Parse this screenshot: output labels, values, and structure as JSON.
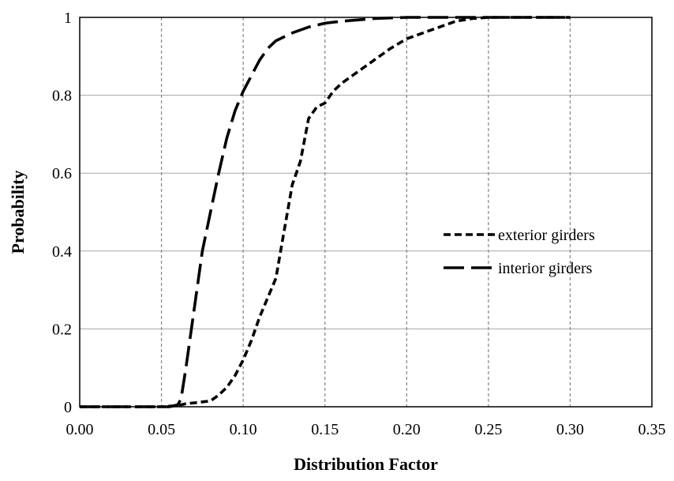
{
  "chart_data": {
    "type": "line",
    "title": "",
    "xlabel": "Distribution Factor",
    "ylabel": "Probability",
    "xlim": [
      0,
      0.35
    ],
    "ylim": [
      0,
      1
    ],
    "x_ticks": [
      "0.00",
      "0.05",
      "0.10",
      "0.15",
      "0.20",
      "0.25",
      "0.30",
      "0.35"
    ],
    "y_ticks": [
      "0",
      "0.2",
      "0.4",
      "0.6",
      "0.8",
      "1"
    ],
    "grid": {
      "x_major": "dashed",
      "y_major": "solid"
    },
    "legend_position": "right-middle",
    "series": [
      {
        "name": "exterior girders",
        "line_style": "short-dash",
        "color": "#000000",
        "points": [
          [
            0.0,
            0.0
          ],
          [
            0.05,
            0.0
          ],
          [
            0.06,
            0.003
          ],
          [
            0.065,
            0.008
          ],
          [
            0.07,
            0.01
          ],
          [
            0.08,
            0.015
          ],
          [
            0.085,
            0.03
          ],
          [
            0.09,
            0.05
          ],
          [
            0.095,
            0.08
          ],
          [
            0.1,
            0.12
          ],
          [
            0.105,
            0.17
          ],
          [
            0.11,
            0.23
          ],
          [
            0.115,
            0.28
          ],
          [
            0.12,
            0.33
          ],
          [
            0.125,
            0.45
          ],
          [
            0.13,
            0.57
          ],
          [
            0.135,
            0.63
          ],
          [
            0.14,
            0.74
          ],
          [
            0.145,
            0.77
          ],
          [
            0.15,
            0.78
          ],
          [
            0.155,
            0.81
          ],
          [
            0.16,
            0.83
          ],
          [
            0.17,
            0.86
          ],
          [
            0.18,
            0.89
          ],
          [
            0.19,
            0.92
          ],
          [
            0.2,
            0.945
          ],
          [
            0.21,
            0.96
          ],
          [
            0.22,
            0.975
          ],
          [
            0.23,
            0.99
          ],
          [
            0.24,
            0.997
          ],
          [
            0.25,
            1.0
          ],
          [
            0.3,
            1.0
          ]
        ]
      },
      {
        "name": "interior girders",
        "line_style": "long-dash",
        "color": "#000000",
        "points": [
          [
            0.0,
            0.0
          ],
          [
            0.055,
            0.0
          ],
          [
            0.06,
            0.005
          ],
          [
            0.062,
            0.02
          ],
          [
            0.065,
            0.1
          ],
          [
            0.07,
            0.25
          ],
          [
            0.075,
            0.4
          ],
          [
            0.08,
            0.5
          ],
          [
            0.085,
            0.6
          ],
          [
            0.09,
            0.69
          ],
          [
            0.095,
            0.76
          ],
          [
            0.1,
            0.81
          ],
          [
            0.105,
            0.85
          ],
          [
            0.11,
            0.89
          ],
          [
            0.115,
            0.92
          ],
          [
            0.12,
            0.94
          ],
          [
            0.13,
            0.96
          ],
          [
            0.14,
            0.975
          ],
          [
            0.15,
            0.985
          ],
          [
            0.16,
            0.99
          ],
          [
            0.18,
            0.997
          ],
          [
            0.2,
            1.0
          ],
          [
            0.3,
            1.0
          ]
        ]
      }
    ]
  }
}
